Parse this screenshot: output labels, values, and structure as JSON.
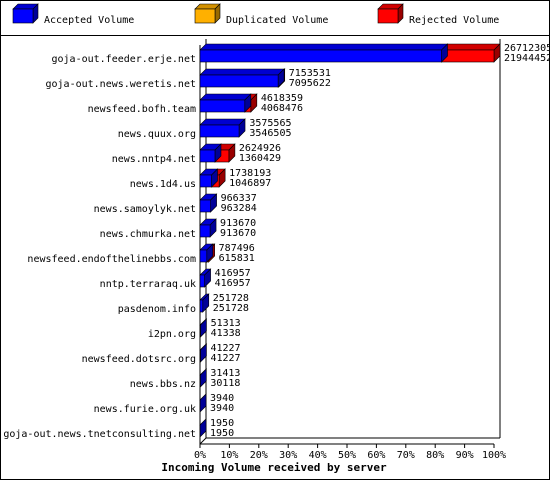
{
  "chart_data": {
    "type": "bar",
    "orientation": "horizontal",
    "stacked": true,
    "three_d": true,
    "title": "Incoming Volume received by server",
    "legend_position": "top",
    "x_ticks": [
      "0%",
      "10%",
      "20%",
      "30%",
      "40%",
      "50%",
      "60%",
      "70%",
      "80%",
      "90%",
      "100%"
    ],
    "xlim": [
      0,
      100
    ],
    "categories": [
      "goja-out.feeder.erje.net",
      "goja-out.news.weretis.net",
      "newsfeed.bofh.team",
      "news.quux.org",
      "news.nntp4.net",
      "news.1d4.us",
      "news.samoylyk.net",
      "news.chmurka.net",
      "newsfeed.endofthelinebbs.com",
      "nntp.terraraq.uk",
      "pasdenom.info",
      "i2pn.org",
      "newsfeed.dotsrc.org",
      "news.bbs.nz",
      "news.furie.org.uk",
      "goja-out.news.tnetconsulting.net"
    ],
    "totals": [
      26712305,
      7153531,
      4618359,
      3575565,
      2624926,
      1738193,
      966337,
      913670,
      787496,
      416957,
      251728,
      51313,
      41227,
      31413,
      3940,
      1950
    ],
    "accepted": [
      21944452,
      7095622,
      4068476,
      3546505,
      1360429,
      1046897,
      963284,
      913670,
      615831,
      416957,
      251728,
      41338,
      41227,
      30118,
      3940,
      1950
    ],
    "totals_label": [
      "26712305",
      "7153531",
      "4618359",
      "3575565",
      "2624926",
      "1738193",
      "966337",
      "913670",
      "787496",
      "416957",
      "251728",
      "51313",
      "41227",
      "31413",
      "3940",
      "1950"
    ],
    "accepted_label": [
      "21944452",
      "7095622",
      "4068476",
      "3546505",
      "1360429",
      "1046897",
      "963284",
      "913670",
      "615831",
      "416957",
      "251728",
      "41338",
      "41227",
      "30118",
      "3940",
      "1950"
    ],
    "series": [
      {
        "name": "Accepted Volume",
        "color": "#0000ff"
      },
      {
        "name": "Duplicated Volume",
        "color": "#ffb000"
      },
      {
        "name": "Rejected Volume",
        "color": "#ff0000"
      }
    ]
  }
}
